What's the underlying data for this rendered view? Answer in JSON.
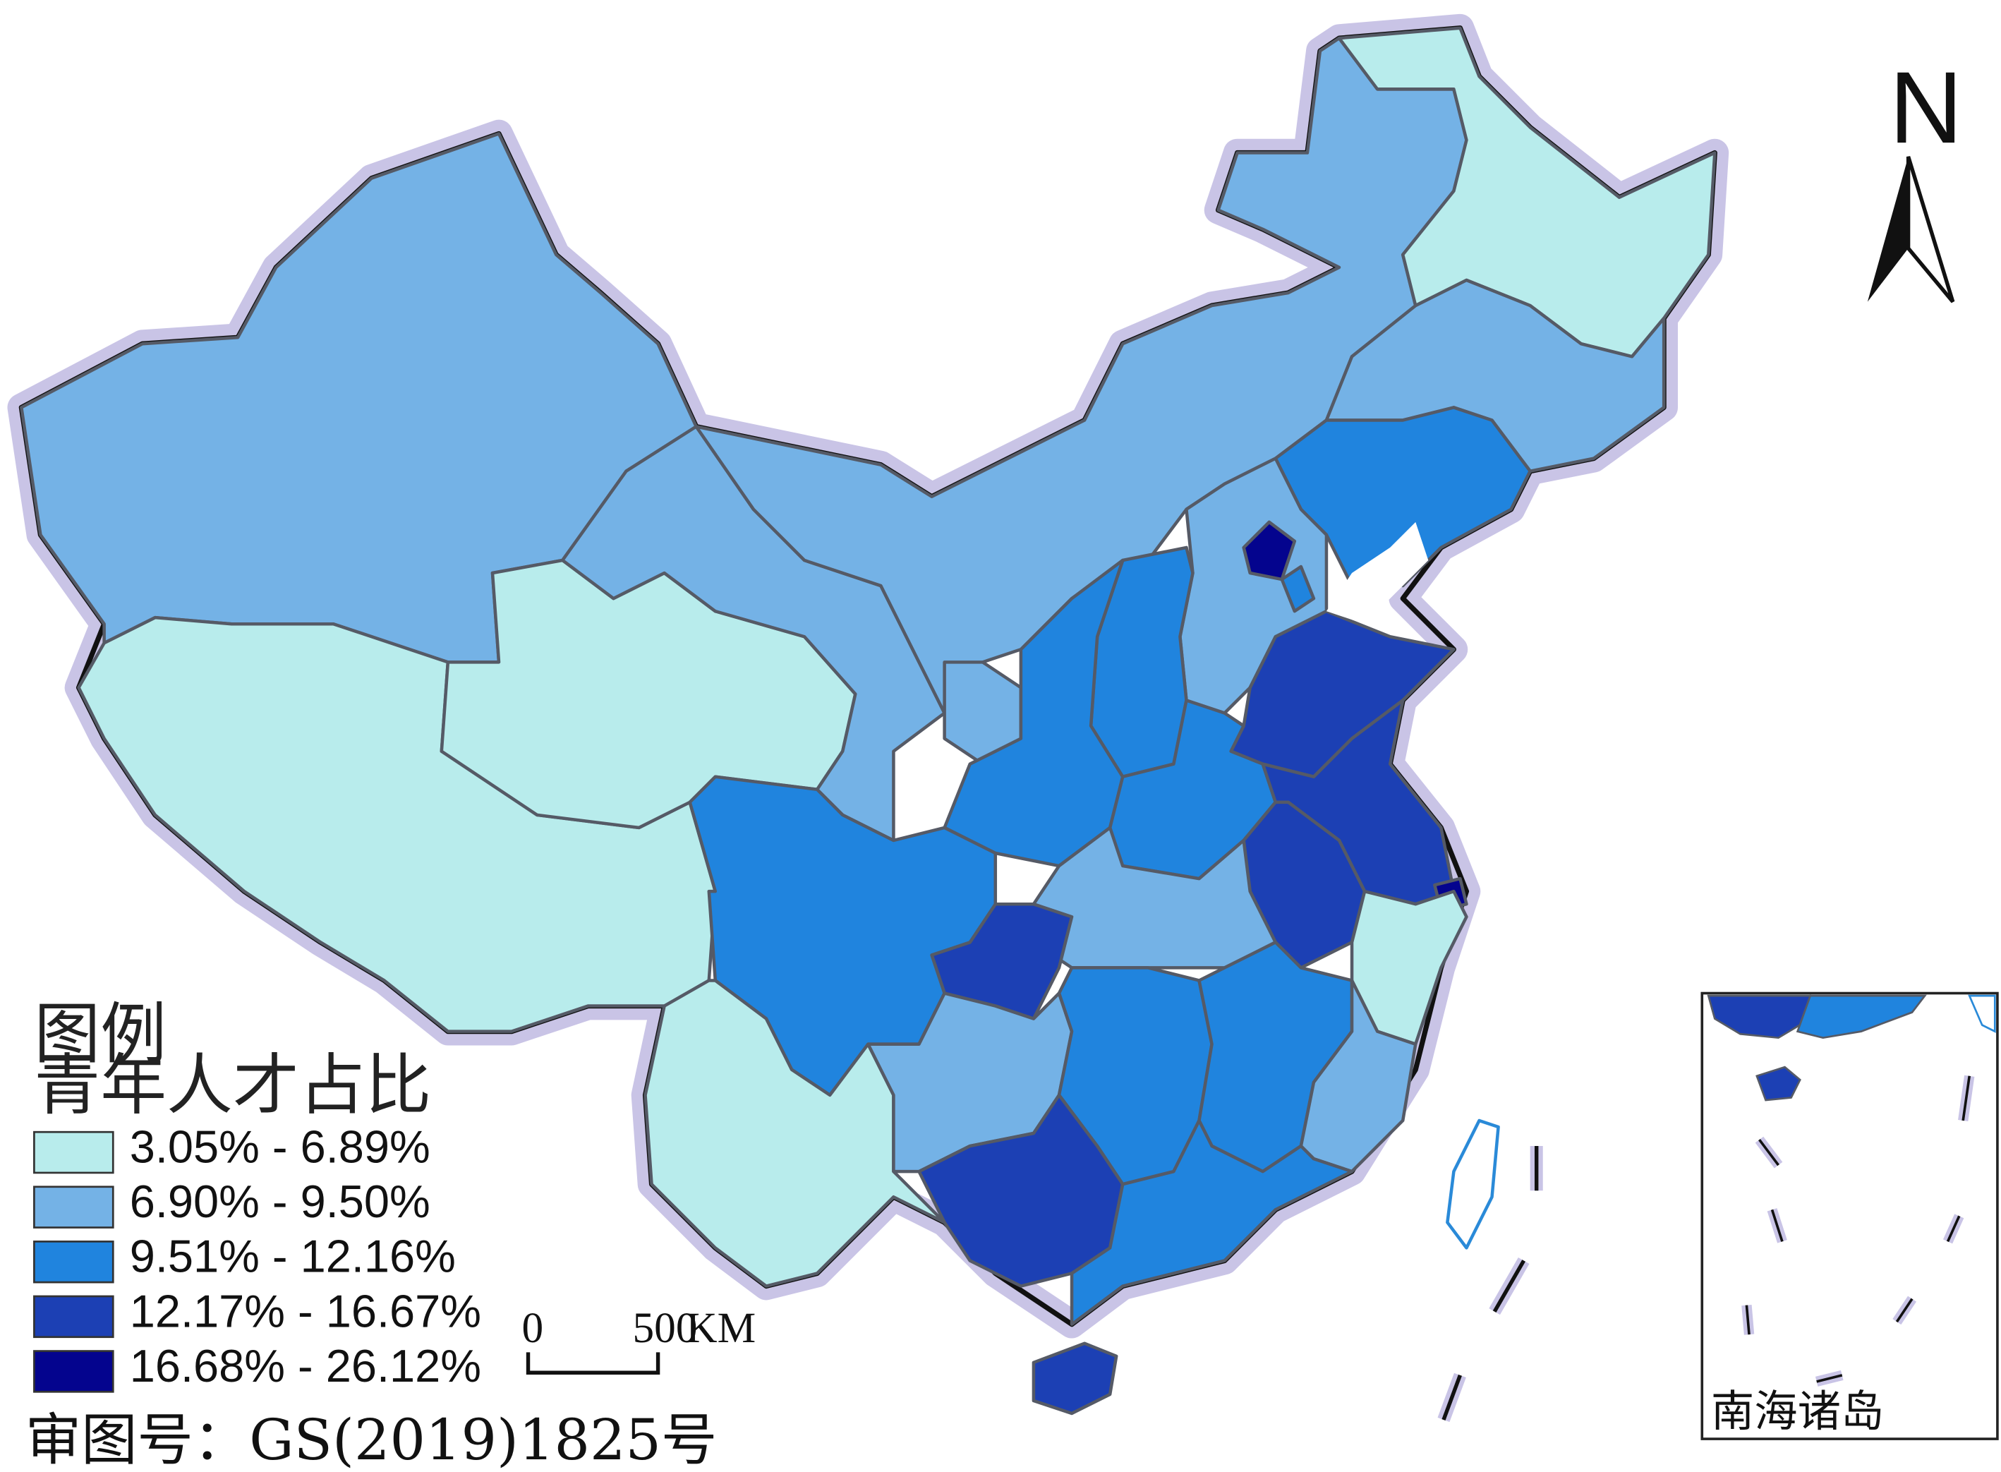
{
  "legend": {
    "title": "图例",
    "subtitle": "青年人才占比",
    "classes": [
      {
        "label": "3.05% - 6.89%",
        "color": "#b8ecec"
      },
      {
        "label": "6.90% - 9.50%",
        "color": "#74b2e6"
      },
      {
        "label": "9.51% - 12.16%",
        "color": "#2084de"
      },
      {
        "label": "12.17% - 16.67%",
        "color": "#1c40b4"
      },
      {
        "label": "16.68% - 26.12%",
        "color": "#04048e"
      }
    ]
  },
  "scale_bar": {
    "start": "0",
    "end": "500",
    "unit": "KM"
  },
  "north_arrow": {
    "label": "N"
  },
  "approval_number": "审图号：GS(2019)1825号",
  "inset": {
    "title": "南海诸岛"
  },
  "map_data": {
    "type": "choropleth",
    "regions": [
      {
        "name": "Xinjiang",
        "class": 1
      },
      {
        "name": "Tibet",
        "class": 0
      },
      {
        "name": "Qinghai",
        "class": 0
      },
      {
        "name": "Gansu",
        "class": 1
      },
      {
        "name": "Inner Mongolia",
        "class": 1
      },
      {
        "name": "Heilongjiang",
        "class": 0
      },
      {
        "name": "Jilin",
        "class": 1
      },
      {
        "name": "Liaoning",
        "class": 2
      },
      {
        "name": "Beijing",
        "class": 4
      },
      {
        "name": "Tianjin",
        "class": 2
      },
      {
        "name": "Hebei",
        "class": 1
      },
      {
        "name": "Shanxi",
        "class": 2
      },
      {
        "name": "Shaanxi",
        "class": 2
      },
      {
        "name": "Ningxia",
        "class": 1
      },
      {
        "name": "Shandong",
        "class": 3
      },
      {
        "name": "Henan",
        "class": 2
      },
      {
        "name": "Jiangsu",
        "class": 3
      },
      {
        "name": "Anhui",
        "class": 3
      },
      {
        "name": "Shanghai",
        "class": 4
      },
      {
        "name": "Zhejiang",
        "class": 0
      },
      {
        "name": "Hubei",
        "class": 1
      },
      {
        "name": "Chongqing",
        "class": 3
      },
      {
        "name": "Sichuan",
        "class": 2
      },
      {
        "name": "Yunnan",
        "class": 0
      },
      {
        "name": "Guizhou",
        "class": 1
      },
      {
        "name": "Hunan",
        "class": 2
      },
      {
        "name": "Jiangxi",
        "class": 2
      },
      {
        "name": "Fujian",
        "class": 1
      },
      {
        "name": "Guangdong",
        "class": 2
      },
      {
        "name": "Guangxi",
        "class": 3
      },
      {
        "name": "Hainan",
        "class": 3
      },
      {
        "name": "Taiwan",
        "class": -1
      }
    ]
  }
}
